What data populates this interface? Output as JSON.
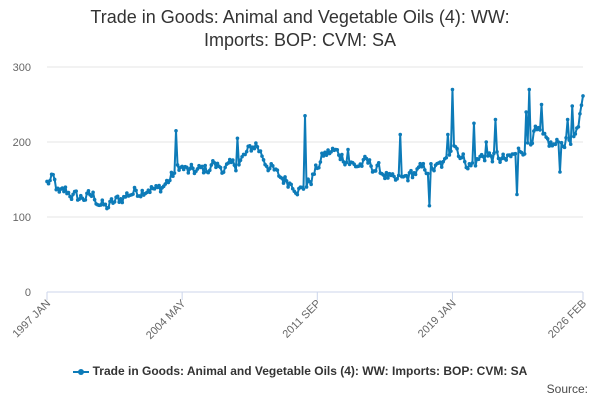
{
  "chart_data": {
    "type": "line",
    "title_lines": [
      "Trade in Goods: Animal and Vegetable Oils (4): WW:",
      "Imports: BOP: CVM: SA"
    ],
    "xlabel": "",
    "ylabel": "",
    "ylim": [
      0,
      300
    ],
    "yticks": [
      0,
      100,
      200,
      300
    ],
    "x_start": "1997 JAN",
    "x_end": "2026 FEB",
    "x_tick_labels": [
      {
        "label": "1997 JAN",
        "index": 0
      },
      {
        "label": "2004 MAY",
        "index": 88
      },
      {
        "label": "2011 SEP",
        "index": 176
      },
      {
        "label": "2019 JAN",
        "index": 264
      },
      {
        "label": "2026 FEB",
        "index": 349
      }
    ],
    "grid": true,
    "legend_position": "bottom-center",
    "colors": {
      "series": "#0d7bb8",
      "grid": "#e6e6e6",
      "axis": "#ccd6eb"
    },
    "series": [
      {
        "name": "Trade in Goods: Animal and Vegetable Oils (4): WW: Imports: BOP: CVM: SA",
        "keypoints": [
          [
            0,
            145
          ],
          [
            4,
            150
          ],
          [
            8,
            128
          ],
          [
            12,
            135
          ],
          [
            20,
            125
          ],
          [
            30,
            128
          ],
          [
            38,
            112
          ],
          [
            46,
            122
          ],
          [
            54,
            132
          ],
          [
            60,
            135
          ],
          [
            66,
            140
          ],
          [
            72,
            135
          ],
          [
            80,
            150
          ],
          [
            86,
            168
          ],
          [
            92,
            160
          ],
          [
            100,
            162
          ],
          [
            110,
            168
          ],
          [
            118,
            165
          ],
          [
            124,
            170
          ],
          [
            136,
            198
          ],
          [
            142,
            175
          ],
          [
            150,
            155
          ],
          [
            160,
            145
          ],
          [
            166,
            135
          ],
          [
            172,
            150
          ],
          [
            180,
            182
          ],
          [
            186,
            188
          ],
          [
            192,
            182
          ],
          [
            200,
            168
          ],
          [
            208,
            172
          ],
          [
            214,
            165
          ],
          [
            220,
            158
          ],
          [
            226,
            145
          ],
          [
            232,
            150
          ],
          [
            240,
            160
          ],
          [
            248,
            165
          ],
          [
            254,
            165
          ],
          [
            260,
            172
          ],
          [
            264,
            205
          ],
          [
            270,
            180
          ],
          [
            276,
            168
          ],
          [
            284,
            182
          ],
          [
            292,
            180
          ],
          [
            300,
            175
          ],
          [
            306,
            185
          ],
          [
            312,
            195
          ],
          [
            318,
            215
          ],
          [
            324,
            200
          ],
          [
            330,
            195
          ],
          [
            336,
            200
          ],
          [
            342,
            205
          ],
          [
            346,
            212
          ],
          [
            349,
            265
          ]
        ],
        "noise_amplitude": 14,
        "spikes": [
          [
            84,
            215
          ],
          [
            108,
            175
          ],
          [
            124,
            205
          ],
          [
            168,
            235
          ],
          [
            196,
            190
          ],
          [
            230,
            210
          ],
          [
            249,
            115
          ],
          [
            261,
            210
          ],
          [
            264,
            270
          ],
          [
            278,
            225
          ],
          [
            286,
            200
          ],
          [
            292,
            230
          ],
          [
            306,
            130
          ],
          [
            312,
            240
          ],
          [
            314,
            270
          ],
          [
            322,
            250
          ],
          [
            334,
            160
          ],
          [
            339,
            230
          ],
          [
            342,
            248
          ]
        ]
      }
    ],
    "legend_label": "Trade in Goods: Animal and Vegetable Oils (4): WW: Imports: BOP: CVM: SA",
    "credits": "Source:"
  }
}
